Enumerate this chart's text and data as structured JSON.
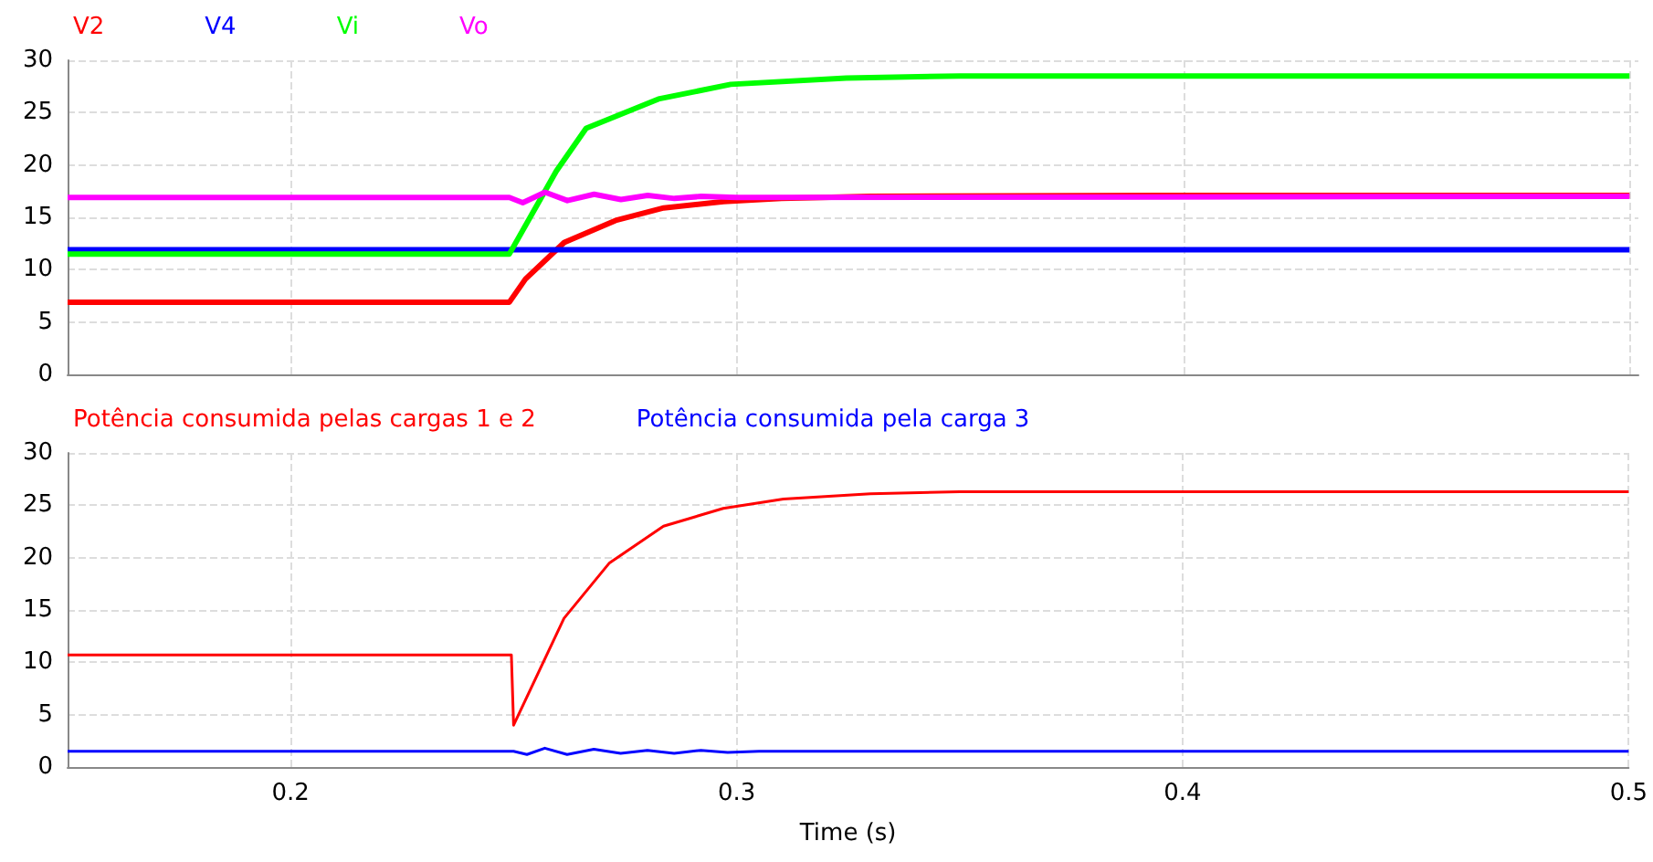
{
  "chart_data": [
    {
      "type": "line",
      "xlim": [
        0.15,
        0.502
      ],
      "xticks": [
        0.2,
        0.3,
        0.4,
        0.5
      ],
      "ylim": [
        0,
        30
      ],
      "yticks": [
        0,
        5,
        10,
        15,
        20,
        25,
        30
      ],
      "grid": true,
      "legend": "top left",
      "tick_labels": "y",
      "marker": "none",
      "line_style": "solid",
      "series": [
        {
          "name": "V2",
          "color": "#ff0000",
          "x": [
            0.15,
            0.249,
            0.2526,
            0.2613,
            0.2728,
            0.2836,
            0.297,
            0.31,
            0.33,
            0.4,
            0.5
          ],
          "values": [
            6.9,
            6.9,
            9.1,
            12.6,
            14.7,
            15.9,
            16.5,
            16.8,
            17.0,
            17.1,
            17.1
          ]
        },
        {
          "name": "V4",
          "color": "#0000ff",
          "x": [
            0.15,
            0.5
          ],
          "values": [
            11.9,
            11.9
          ]
        },
        {
          "name": "Vi",
          "color": "#00ff00",
          "x": [
            0.15,
            0.249,
            0.2595,
            0.2662,
            0.2824,
            0.2986,
            0.3245,
            0.35,
            0.4,
            0.5
          ],
          "values": [
            11.5,
            11.5,
            19.4,
            23.5,
            26.3,
            27.7,
            28.3,
            28.5,
            28.5,
            28.5
          ]
        },
        {
          "name": "Vo",
          "color": "#ff00ff",
          "x": [
            0.15,
            0.249,
            0.252,
            0.257,
            0.262,
            0.268,
            0.274,
            0.28,
            0.286,
            0.292,
            0.3,
            0.5
          ],
          "values": [
            16.9,
            16.9,
            16.4,
            17.4,
            16.6,
            17.2,
            16.7,
            17.1,
            16.8,
            17.0,
            16.9,
            17.0
          ]
        }
      ]
    },
    {
      "type": "line",
      "xlabel": "Time (s)",
      "xlim": [
        0.15,
        0.5
      ],
      "xticks": [
        0.2,
        0.3,
        0.4,
        0.5
      ],
      "ylim": [
        0,
        30
      ],
      "yticks": [
        0,
        5,
        10,
        15,
        20,
        25,
        30
      ],
      "grid": true,
      "legend": "top left",
      "marker": "none",
      "line_style": "solid",
      "series": [
        {
          "name": "Potência consumida pelas cargas 1 e 2",
          "color": "#ff0000",
          "x": [
            0.15,
            0.2495,
            0.25,
            0.2613,
            0.2715,
            0.2836,
            0.297,
            0.3105,
            0.33,
            0.35,
            0.5
          ],
          "values": [
            10.7,
            10.7,
            4.0,
            14.2,
            19.5,
            23.0,
            24.7,
            25.6,
            26.1,
            26.3,
            26.3
          ]
        },
        {
          "name": "Potência consumida pela carga 3",
          "color": "#0000ff",
          "x": [
            0.15,
            0.25,
            0.253,
            0.257,
            0.262,
            0.268,
            0.274,
            0.28,
            0.286,
            0.292,
            0.298,
            0.305,
            0.5
          ],
          "values": [
            1.5,
            1.5,
            1.2,
            1.8,
            1.2,
            1.7,
            1.3,
            1.6,
            1.3,
            1.6,
            1.4,
            1.5,
            1.5
          ]
        }
      ]
    }
  ]
}
